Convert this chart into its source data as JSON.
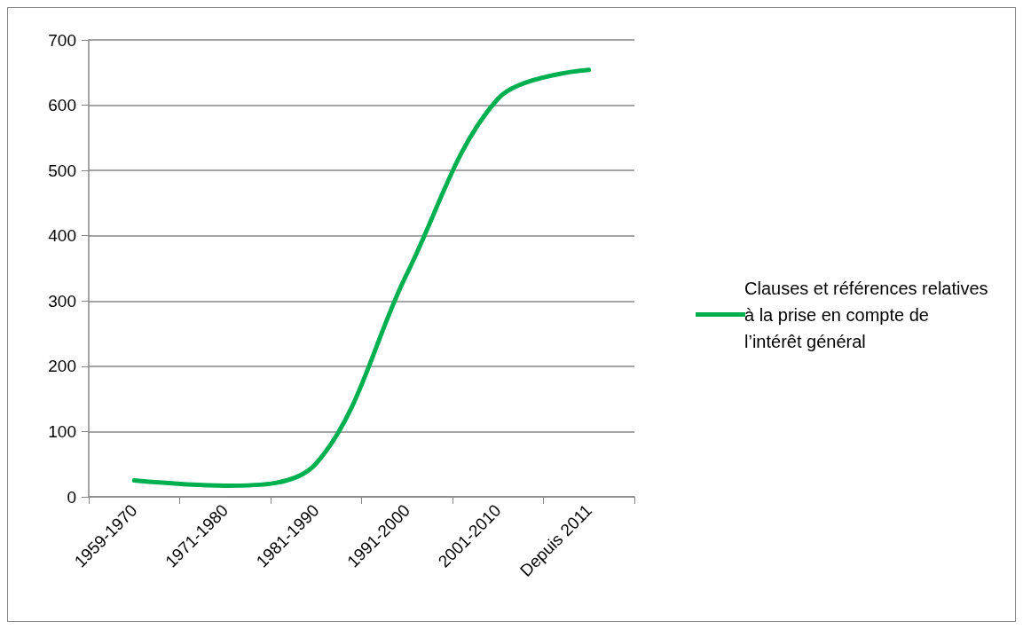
{
  "chart_data": {
    "type": "line",
    "categories": [
      "1959-1970",
      "1971-1980",
      "1981-1990",
      "1991-2000",
      "2001-2010",
      "Depuis 2011"
    ],
    "series": [
      {
        "name": "Clauses et références relatives à la prise en compte de l’intérêt général",
        "color": "#00b050",
        "values": [
          25,
          17,
          51,
          342,
          610,
          654
        ]
      }
    ],
    "ylim": [
      0,
      700
    ],
    "yticks": [
      0,
      100,
      200,
      300,
      400,
      500,
      600,
      700
    ],
    "grid": "y",
    "legend": "right",
    "marker": "none",
    "line_style": "solid"
  }
}
